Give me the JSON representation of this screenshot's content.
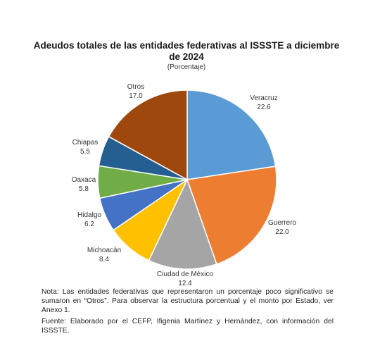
{
  "chart_data": {
    "type": "pie",
    "title": "Adeudos totales de las entidades federativas al ISSSTE a diciembre de 2024",
    "subtitle": "(Porcentaje)",
    "slices": [
      {
        "label": "Veracruz",
        "value": 22.6,
        "value_text": "22.6",
        "color": "#5b9bd5"
      },
      {
        "label": "Guerrero",
        "value": 22.0,
        "value_text": "22.0",
        "color": "#ed7d31"
      },
      {
        "label": "Ciudad de México",
        "value": 12.4,
        "value_text": "12.4",
        "color": "#a5a5a5"
      },
      {
        "label": "Michoacán",
        "value": 8.4,
        "value_text": "8.4",
        "color": "#ffc000"
      },
      {
        "label": "Hidalgo",
        "value": 6.2,
        "value_text": "6.2",
        "color": "#4472c4"
      },
      {
        "label": "Oaxaca",
        "value": 5.8,
        "value_text": "5.8",
        "color": "#70ad47"
      },
      {
        "label": "Chiapas",
        "value": 5.5,
        "value_text": "5.5",
        "color": "#255e91"
      },
      {
        "label": "Otros",
        "value": 17.0,
        "value_text": "17.0",
        "color": "#9e480e"
      }
    ]
  },
  "notes": {
    "note": "Nota: Las entidades federativas que representaron un porcentaje poco significativo se sumaron en “Otros”. Para observar la estructura porcentual y el monto por Estado, ver Anexo 1.",
    "source": "Fuente: Elaborado por el CEFP, Ifigenia Martínez y Hernández, con información del ISSSTE."
  }
}
